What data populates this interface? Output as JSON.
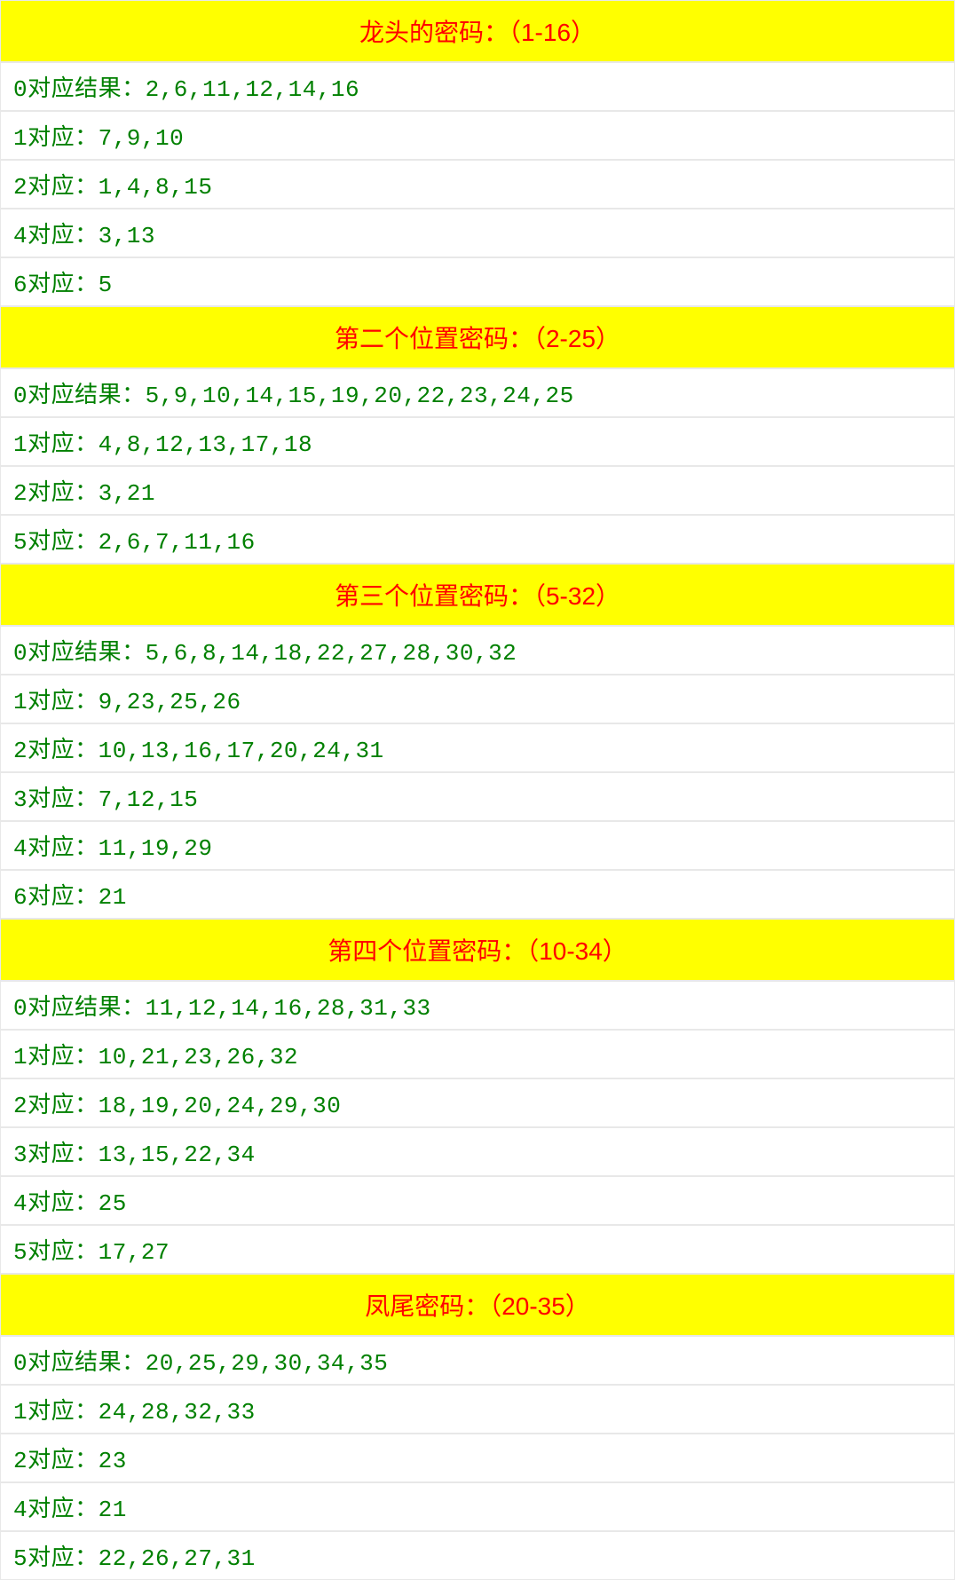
{
  "colors": {
    "header_bg": "#ffff00",
    "header_text": "#ff0000",
    "row_bg": "#ffffff",
    "row_text": "#008000",
    "border": "#e8e8e8"
  },
  "typography": {
    "header_fontsize": 28,
    "row_fontsize": 26,
    "row_font": "monospace"
  },
  "sections": [
    {
      "title": "龙头的密码：（1-16）",
      "rows": [
        "0对应结果：2,6,11,12,14,16",
        "1对应：7,9,10",
        "2对应：1,4,8,15",
        "4对应：3,13",
        "6对应：5"
      ]
    },
    {
      "title": "第二个位置密码：（2-25）",
      "rows": [
        "0对应结果：5,9,10,14,15,19,20,22,23,24,25",
        "1对应：4,8,12,13,17,18",
        "2对应：3,21",
        "5对应：2,6,7,11,16"
      ]
    },
    {
      "title": "第三个位置密码：（5-32）",
      "rows": [
        "0对应结果：5,6,8,14,18,22,27,28,30,32",
        "1对应：9,23,25,26",
        "2对应：10,13,16,17,20,24,31",
        "3对应：7,12,15",
        "4对应：11,19,29",
        "6对应：21"
      ]
    },
    {
      "title": "第四个位置密码：（10-34）",
      "rows": [
        "0对应结果：11,12,14,16,28,31,33",
        "1对应：10,21,23,26,32",
        "2对应：18,19,20,24,29,30",
        "3对应：13,15,22,34",
        "4对应：25",
        "5对应：17,27"
      ]
    },
    {
      "title": "凤尾密码：（20-35）",
      "rows": [
        "0对应结果：20,25,29,30,34,35",
        "1对应：24,28,32,33",
        "2对应：23",
        "4对应：21",
        "5对应：22,26,27,31"
      ]
    }
  ]
}
